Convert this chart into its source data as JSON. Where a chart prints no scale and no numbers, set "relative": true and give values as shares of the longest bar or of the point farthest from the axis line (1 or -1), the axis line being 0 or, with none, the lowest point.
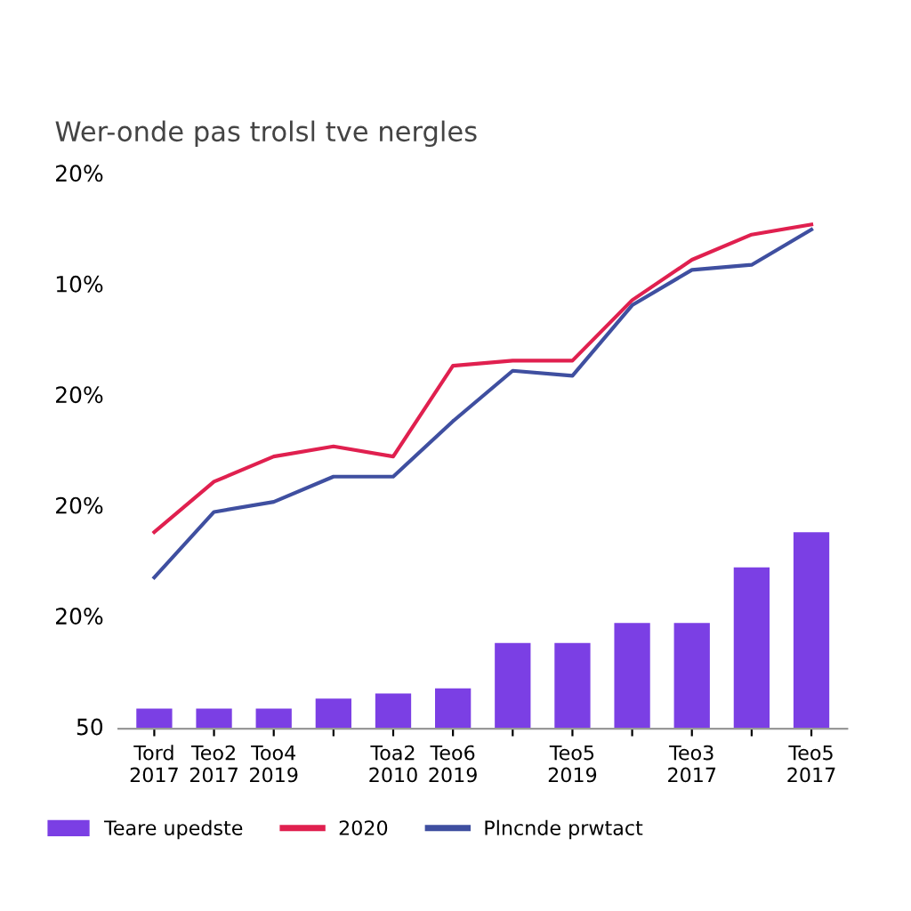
{
  "chart_data": {
    "type": "bar",
    "relative": true,
    "subtitle": "Wer-onde pas trolsl tve nergles",
    "categories": [
      "Tord\n2017",
      "Teo2\n2017",
      "Too4\n2019",
      null,
      "Toa2\n2010",
      "Teo6\n2019",
      null,
      "Teo5\n2019",
      null,
      "Teo3\n2017",
      null,
      "Teo5\n2017"
    ],
    "annotations": [
      "20%",
      "10%",
      "20%",
      "20%",
      "20%",
      "50"
    ],
    "series": [
      {
        "name": "Teare upedste",
        "color": "#7b3fe4",
        "values": [
          0.04,
          0.04,
          0.04,
          0.06,
          0.07,
          0.08,
          0.17,
          0.17,
          0.21,
          0.21,
          0.32,
          0.39
        ]
      },
      {
        "name": "2020",
        "type": "line",
        "color": "#e0204f",
        "values": [
          0.39,
          0.49,
          0.54,
          0.56,
          0.54,
          0.72,
          0.73,
          0.73,
          0.85,
          0.93,
          0.98,
          1
        ]
      },
      {
        "name": "Plncnde prwtact",
        "type": "line",
        "color": "#3f4fa0",
        "values": [
          0.3,
          0.43,
          0.45,
          0.5,
          0.5,
          0.61,
          0.71,
          0.7,
          0.84,
          0.91,
          0.92,
          0.99
        ]
      }
    ],
    "legend": "bottom",
    "line_style": "solid"
  }
}
